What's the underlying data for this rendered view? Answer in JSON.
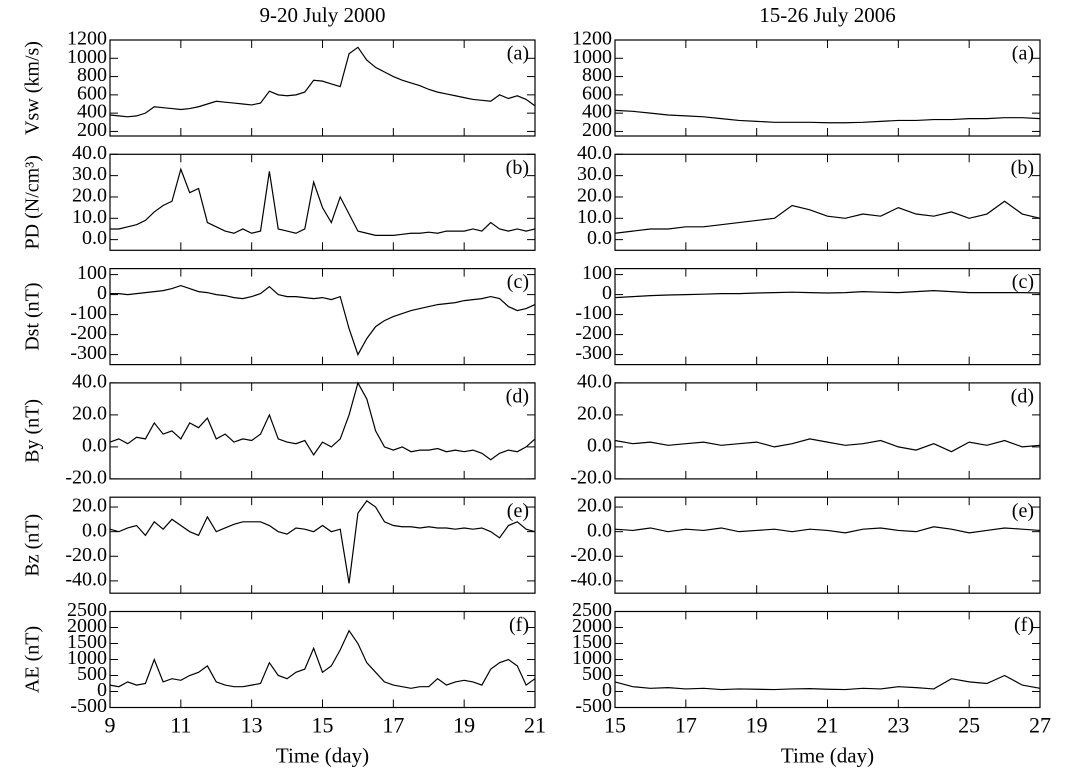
{
  "chart_data": [
    {
      "type": "line",
      "title": "9-20 July 2000",
      "ylabel": "Vsw (km/s)",
      "annotation": "(a)",
      "color": "#000000",
      "xlim": [
        9,
        21
      ],
      "xticks": [
        9,
        11,
        13,
        15,
        17,
        19,
        21
      ],
      "ylim": [
        150,
        1200
      ],
      "yticks": [
        200,
        400,
        600,
        800,
        1000,
        1200
      ],
      "x": [
        9,
        9.25,
        9.5,
        9.75,
        10,
        10.25,
        10.5,
        10.75,
        11,
        11.25,
        11.5,
        11.75,
        12,
        12.25,
        12.5,
        12.75,
        13,
        13.25,
        13.5,
        13.75,
        14,
        14.25,
        14.5,
        14.75,
        15,
        15.25,
        15.5,
        15.75,
        16,
        16.25,
        16.5,
        16.75,
        17,
        17.25,
        17.5,
        17.75,
        18,
        18.25,
        18.5,
        18.75,
        19,
        19.25,
        19.5,
        19.75,
        20,
        20.25,
        20.5,
        20.75,
        21
      ],
      "values": [
        380,
        370,
        360,
        370,
        400,
        470,
        460,
        450,
        440,
        450,
        470,
        500,
        530,
        520,
        510,
        500,
        490,
        510,
        640,
        600,
        590,
        600,
        630,
        760,
        750,
        720,
        690,
        1050,
        1120,
        980,
        900,
        850,
        800,
        760,
        730,
        700,
        660,
        630,
        610,
        590,
        570,
        550,
        540,
        530,
        600,
        560,
        590,
        550,
        480
      ]
    },
    {
      "type": "line",
      "title": "15-26 July 2006",
      "annotation": "(a)",
      "color": "#000000",
      "xlim": [
        15,
        27
      ],
      "xticks": [
        15,
        17,
        19,
        21,
        23,
        25,
        27
      ],
      "ylim": [
        150,
        1200
      ],
      "yticks": [
        200,
        400,
        600,
        800,
        1000,
        1200
      ],
      "x": [
        15,
        15.5,
        16,
        16.5,
        17,
        17.5,
        18,
        18.5,
        19,
        19.5,
        20,
        20.5,
        21,
        21.5,
        22,
        22.5,
        23,
        23.5,
        24,
        24.5,
        25,
        25.5,
        26,
        26.5,
        27
      ],
      "values": [
        430,
        420,
        400,
        380,
        370,
        360,
        340,
        320,
        310,
        300,
        300,
        300,
        295,
        295,
        300,
        310,
        320,
        320,
        330,
        330,
        340,
        340,
        350,
        350,
        340
      ]
    },
    {
      "type": "line",
      "ylabel": "PD (N/cm³)",
      "annotation": "(b)",
      "color": "#000000",
      "xlim": [
        9,
        21
      ],
      "xticks": [
        9,
        11,
        13,
        15,
        17,
        19,
        21
      ],
      "ylim": [
        -5,
        40
      ],
      "yticks": [
        {
          "value": 0,
          "label": "0.0"
        },
        {
          "value": 10,
          "label": "10.0"
        },
        {
          "value": 20,
          "label": "20.0"
        },
        {
          "value": 30,
          "label": "30.0"
        },
        {
          "value": 40,
          "label": "40.0"
        }
      ],
      "x": [
        9,
        9.25,
        9.5,
        9.75,
        10,
        10.25,
        10.5,
        10.75,
        11,
        11.25,
        11.5,
        11.75,
        12,
        12.25,
        12.5,
        12.75,
        13,
        13.25,
        13.5,
        13.75,
        14,
        14.25,
        14.5,
        14.75,
        15,
        15.25,
        15.5,
        15.75,
        16,
        16.25,
        16.5,
        16.75,
        17,
        17.25,
        17.5,
        17.75,
        18,
        18.25,
        18.5,
        18.75,
        19,
        19.25,
        19.5,
        19.75,
        20,
        20.25,
        20.5,
        20.75,
        21
      ],
      "values": [
        5,
        5,
        6,
        7,
        9,
        13,
        16,
        18,
        33,
        22,
        24,
        8,
        6,
        4,
        3,
        5,
        3,
        4,
        32,
        5,
        4,
        3,
        5,
        27,
        15,
        8,
        20,
        12,
        4,
        3,
        2,
        2,
        2,
        2.5,
        3,
        3,
        3.5,
        3,
        4,
        4,
        4,
        5,
        4,
        8,
        5,
        4,
        5,
        4,
        5
      ]
    },
    {
      "type": "line",
      "annotation": "(b)",
      "color": "#000000",
      "xlim": [
        15,
        27
      ],
      "xticks": [
        15,
        17,
        19,
        21,
        23,
        25,
        27
      ],
      "ylim": [
        -5,
        40
      ],
      "yticks": [
        {
          "value": 0,
          "label": "0.0"
        },
        {
          "value": 10,
          "label": "10.0"
        },
        {
          "value": 20,
          "label": "20.0"
        },
        {
          "value": 30,
          "label": "30.0"
        },
        {
          "value": 40,
          "label": "40.0"
        }
      ],
      "x": [
        15,
        15.5,
        16,
        16.5,
        17,
        17.5,
        18,
        18.5,
        19,
        19.5,
        20,
        20.5,
        21,
        21.5,
        22,
        22.5,
        23,
        23.5,
        24,
        24.5,
        25,
        25.5,
        26,
        26.5,
        27
      ],
      "values": [
        3,
        4,
        5,
        5,
        6,
        6,
        7,
        8,
        9,
        10,
        16,
        14,
        11,
        10,
        12,
        11,
        15,
        12,
        11,
        13,
        10,
        12,
        18,
        12,
        10
      ]
    },
    {
      "type": "line",
      "ylabel": "Dst (nT)",
      "annotation": "(c)",
      "color": "#000000",
      "xlim": [
        9,
        21
      ],
      "xticks": [
        9,
        11,
        13,
        15,
        17,
        19,
        21
      ],
      "ylim": [
        -350,
        130
      ],
      "yticks": [
        100,
        0,
        -100,
        -200,
        -300
      ],
      "x": [
        9,
        9.25,
        9.5,
        9.75,
        10,
        10.25,
        10.5,
        10.75,
        11,
        11.25,
        11.5,
        11.75,
        12,
        12.25,
        12.5,
        12.75,
        13,
        13.25,
        13.5,
        13.75,
        14,
        14.25,
        14.5,
        14.75,
        15,
        15.25,
        15.5,
        15.75,
        16,
        16.25,
        16.5,
        16.75,
        17,
        17.25,
        17.5,
        17.75,
        18,
        18.25,
        18.5,
        18.75,
        19,
        19.25,
        19.5,
        19.75,
        20,
        20.25,
        20.5,
        20.75,
        21
      ],
      "values": [
        5,
        5,
        0,
        5,
        10,
        15,
        20,
        30,
        45,
        30,
        15,
        10,
        0,
        -5,
        -15,
        -20,
        -10,
        5,
        40,
        0,
        -10,
        -10,
        -15,
        -20,
        -15,
        -25,
        -10,
        -170,
        -300,
        -220,
        -160,
        -130,
        -110,
        -95,
        -80,
        -70,
        -60,
        -50,
        -45,
        -40,
        -30,
        -25,
        -20,
        -10,
        -20,
        -60,
        -80,
        -70,
        -50
      ]
    },
    {
      "type": "line",
      "annotation": "(c)",
      "color": "#000000",
      "xlim": [
        15,
        27
      ],
      "xticks": [
        15,
        17,
        19,
        21,
        23,
        25,
        27
      ],
      "ylim": [
        -350,
        130
      ],
      "yticks": [
        100,
        0,
        -100,
        -200,
        -300
      ],
      "x": [
        15,
        15.5,
        16,
        16.5,
        17,
        17.5,
        18,
        18.5,
        19,
        19.5,
        20,
        20.5,
        21,
        21.5,
        22,
        22.5,
        23,
        23.5,
        24,
        24.5,
        25,
        25.5,
        26,
        26.5,
        27
      ],
      "values": [
        -15,
        -10,
        -5,
        -2,
        0,
        2,
        5,
        5,
        8,
        10,
        12,
        10,
        8,
        10,
        15,
        12,
        10,
        15,
        20,
        15,
        10,
        10,
        10,
        10,
        8
      ]
    },
    {
      "type": "line",
      "ylabel": "By (nT)",
      "annotation": "(d)",
      "color": "#000000",
      "xlim": [
        9,
        21
      ],
      "xticks": [
        9,
        11,
        13,
        15,
        17,
        19,
        21
      ],
      "ylim": [
        -20,
        40
      ],
      "yticks": [
        {
          "value": -20,
          "label": "-20.0"
        },
        {
          "value": 0,
          "label": "0.0"
        },
        {
          "value": 20,
          "label": "20.0"
        },
        {
          "value": 40,
          "label": "40.0"
        }
      ],
      "x": [
        9,
        9.25,
        9.5,
        9.75,
        10,
        10.25,
        10.5,
        10.75,
        11,
        11.25,
        11.5,
        11.75,
        12,
        12.25,
        12.5,
        12.75,
        13,
        13.25,
        13.5,
        13.75,
        14,
        14.25,
        14.5,
        14.75,
        15,
        15.25,
        15.5,
        15.75,
        16,
        16.25,
        16.5,
        16.75,
        17,
        17.25,
        17.5,
        17.75,
        18,
        18.25,
        18.5,
        18.75,
        19,
        19.25,
        19.5,
        19.75,
        20,
        20.25,
        20.5,
        20.75,
        21
      ],
      "values": [
        3,
        5,
        2,
        6,
        5,
        15,
        8,
        10,
        5,
        15,
        12,
        18,
        5,
        8,
        3,
        5,
        4,
        8,
        20,
        5,
        3,
        2,
        4,
        -5,
        3,
        0,
        5,
        20,
        40,
        30,
        10,
        0,
        -2,
        0,
        -3,
        -2,
        -2,
        -1,
        -3,
        -2,
        -3,
        -2,
        -4,
        -8,
        -4,
        -2,
        -3,
        0,
        5
      ]
    },
    {
      "type": "line",
      "annotation": "(d)",
      "color": "#000000",
      "xlim": [
        15,
        27
      ],
      "xticks": [
        15,
        17,
        19,
        21,
        23,
        25,
        27
      ],
      "ylim": [
        -20,
        40
      ],
      "yticks": [
        {
          "value": -20,
          "label": "-20.0"
        },
        {
          "value": 0,
          "label": "0.0"
        },
        {
          "value": 20,
          "label": "20.0"
        },
        {
          "value": 40,
          "label": "40.0"
        }
      ],
      "x": [
        15,
        15.5,
        16,
        16.5,
        17,
        17.5,
        18,
        18.5,
        19,
        19.5,
        20,
        20.5,
        21,
        21.5,
        22,
        22.5,
        23,
        23.5,
        24,
        24.5,
        25,
        25.5,
        26,
        26.5,
        27
      ],
      "values": [
        4,
        2,
        3,
        1,
        2,
        3,
        1,
        2,
        3,
        0,
        2,
        5,
        3,
        1,
        2,
        4,
        0,
        -2,
        2,
        -3,
        3,
        1,
        4,
        0,
        1
      ]
    },
    {
      "type": "line",
      "ylabel": "Bz (nT)",
      "annotation": "(e)",
      "color": "#000000",
      "xlim": [
        9,
        21
      ],
      "xticks": [
        9,
        11,
        13,
        15,
        17,
        19,
        21
      ],
      "ylim": [
        -50,
        28
      ],
      "yticks": [
        {
          "value": 20,
          "label": "20.0"
        },
        {
          "value": 0,
          "label": "0.0"
        },
        {
          "value": -20,
          "label": "-20.0"
        },
        {
          "value": -40,
          "label": "-40.0"
        }
      ],
      "x": [
        9,
        9.25,
        9.5,
        9.75,
        10,
        10.25,
        10.5,
        10.75,
        11,
        11.25,
        11.5,
        11.75,
        12,
        12.25,
        12.5,
        12.75,
        13,
        13.25,
        13.5,
        13.75,
        14,
        14.25,
        14.5,
        14.75,
        15,
        15.25,
        15.5,
        15.75,
        16,
        16.25,
        16.5,
        16.75,
        17,
        17.25,
        17.5,
        17.75,
        18,
        18.25,
        18.5,
        18.75,
        19,
        19.25,
        19.5,
        19.75,
        20,
        20.25,
        20.5,
        20.75,
        21
      ],
      "values": [
        2,
        0,
        3,
        5,
        -3,
        8,
        2,
        10,
        5,
        0,
        -3,
        12,
        0,
        3,
        6,
        8,
        8,
        8,
        5,
        0,
        -2,
        3,
        2,
        0,
        5,
        0,
        2,
        -42,
        15,
        25,
        20,
        8,
        5,
        4,
        4,
        3,
        4,
        3,
        3,
        2,
        3,
        2,
        3,
        0,
        -5,
        5,
        8,
        2,
        0
      ]
    },
    {
      "type": "line",
      "annotation": "(e)",
      "color": "#000000",
      "xlim": [
        15,
        27
      ],
      "xticks": [
        15,
        17,
        19,
        21,
        23,
        25,
        27
      ],
      "ylim": [
        -50,
        28
      ],
      "yticks": [
        {
          "value": 20,
          "label": "20.0"
        },
        {
          "value": 0,
          "label": "0.0"
        },
        {
          "value": -20,
          "label": "-20.0"
        },
        {
          "value": -40,
          "label": "-40.0"
        }
      ],
      "x": [
        15,
        15.5,
        16,
        16.5,
        17,
        17.5,
        18,
        18.5,
        19,
        19.5,
        20,
        20.5,
        21,
        21.5,
        22,
        22.5,
        23,
        23.5,
        24,
        24.5,
        25,
        25.5,
        26,
        26.5,
        27
      ],
      "values": [
        2,
        1,
        3,
        0,
        2,
        1,
        3,
        0,
        1,
        2,
        0,
        2,
        1,
        -1,
        2,
        3,
        1,
        0,
        4,
        2,
        -1,
        1,
        3,
        2,
        1
      ]
    },
    {
      "type": "line",
      "ylabel": "AE (nT)",
      "xlabel": "Time (day)",
      "annotation": "(f)",
      "color": "#000000",
      "xlim": [
        9,
        21
      ],
      "xticks": [
        9,
        11,
        13,
        15,
        17,
        19,
        21
      ],
      "ylim": [
        -500,
        2500
      ],
      "yticks": [
        -500,
        0,
        500,
        1000,
        1500,
        2000,
        2500
      ],
      "x": [
        9,
        9.25,
        9.5,
        9.75,
        10,
        10.25,
        10.5,
        10.75,
        11,
        11.25,
        11.5,
        11.75,
        12,
        12.25,
        12.5,
        12.75,
        13,
        13.25,
        13.5,
        13.75,
        14,
        14.25,
        14.5,
        14.75,
        15,
        15.25,
        15.5,
        15.75,
        16,
        16.25,
        16.5,
        16.75,
        17,
        17.25,
        17.5,
        17.75,
        18,
        18.25,
        18.5,
        18.75,
        19,
        19.25,
        19.5,
        19.75,
        20,
        20.25,
        20.5,
        20.75,
        21
      ],
      "values": [
        200,
        150,
        300,
        200,
        250,
        1000,
        300,
        400,
        350,
        500,
        600,
        800,
        300,
        200,
        150,
        150,
        200,
        250,
        900,
        500,
        400,
        600,
        700,
        1350,
        600,
        800,
        1300,
        1900,
        1500,
        900,
        600,
        300,
        200,
        150,
        100,
        150,
        150,
        400,
        200,
        300,
        350,
        300,
        200,
        700,
        900,
        1000,
        800,
        200,
        400
      ]
    },
    {
      "type": "line",
      "xlabel": "Time (day)",
      "annotation": "(f)",
      "color": "#000000",
      "xlim": [
        15,
        27
      ],
      "xticks": [
        15,
        17,
        19,
        21,
        23,
        25,
        27
      ],
      "ylim": [
        -500,
        2500
      ],
      "yticks": [
        -500,
        0,
        500,
        1000,
        1500,
        2000,
        2500
      ],
      "x": [
        15,
        15.5,
        16,
        16.5,
        17,
        17.5,
        18,
        18.5,
        19,
        19.5,
        20,
        20.5,
        21,
        21.5,
        22,
        22.5,
        23,
        23.5,
        24,
        24.5,
        25,
        25.5,
        26,
        26.5,
        27
      ],
      "values": [
        300,
        150,
        100,
        120,
        80,
        100,
        60,
        80,
        70,
        60,
        80,
        90,
        70,
        60,
        100,
        80,
        150,
        120,
        80,
        400,
        300,
        250,
        500,
        200,
        100
      ]
    }
  ]
}
